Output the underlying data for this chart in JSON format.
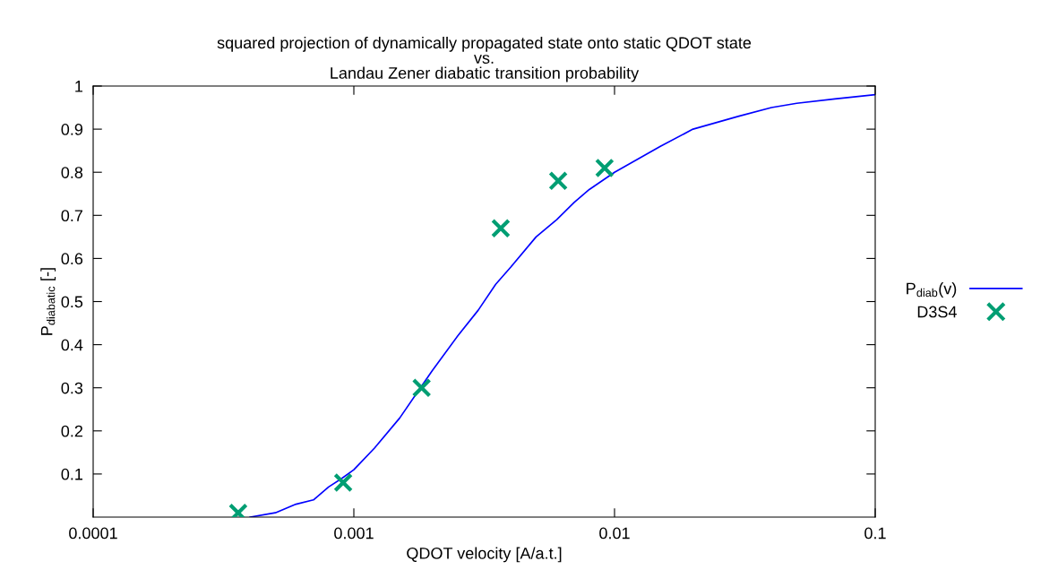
{
  "chart_data": {
    "type": "line",
    "title": "squared projection of dynamically propagated state onto static QDOT state\nvs.\nLandau Zener diabatic transition probability",
    "xlabel": "QDOT velocity [A/a.t.]",
    "ylabel": "P$_{diabatic}$ [-]",
    "log": "x",
    "xlim": [
      0.0001,
      0.1
    ],
    "xticks": [
      0.0001,
      0.001,
      0.01,
      0.1
    ],
    "ylim": [
      0,
      1
    ],
    "yticks": [
      0.1,
      0.2,
      0.3,
      0.4,
      0.5,
      0.6,
      0.7,
      0.8,
      0.9,
      1
    ],
    "grid": false,
    "legend": "right",
    "series": [
      {
        "name": "P$_{diab}$(v)",
        "type": "line",
        "color": "#0000ff",
        "marker": "none",
        "line_style": "solid",
        "x": [
          0.0004,
          0.0005,
          0.0006,
          0.0007,
          0.0008,
          0.0009,
          0.001,
          0.0012,
          0.0015,
          0.0018,
          0.002,
          0.0025,
          0.003,
          0.0035,
          0.004,
          0.005,
          0.006,
          0.007,
          0.008,
          0.01,
          0.015,
          0.02,
          0.03,
          0.04,
          0.05,
          0.07,
          0.1
        ],
        "values": [
          0.0,
          0.01,
          0.03,
          0.04,
          0.07,
          0.09,
          0.11,
          0.16,
          0.23,
          0.3,
          0.34,
          0.42,
          0.48,
          0.54,
          0.58,
          0.65,
          0.69,
          0.73,
          0.76,
          0.8,
          0.86,
          0.9,
          0.93,
          0.95,
          0.96,
          0.97,
          0.98
        ]
      },
      {
        "name": "D3S4",
        "type": "scatter",
        "color": "#009e73",
        "marker": "cross",
        "x": [
          0.00036,
          0.00091,
          0.00182,
          0.00366,
          0.00608,
          0.00916
        ],
        "values": [
          0.01,
          0.08,
          0.3,
          0.67,
          0.78,
          0.81
        ]
      }
    ]
  }
}
